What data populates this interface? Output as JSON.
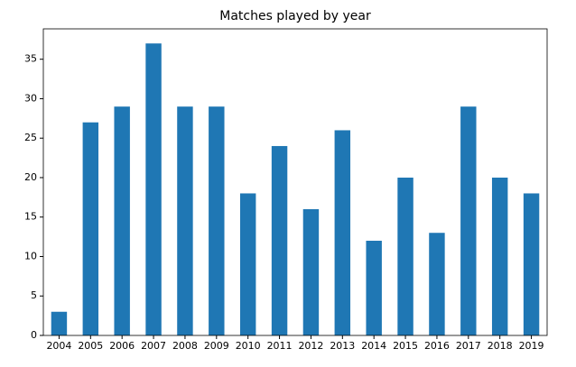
{
  "chart_data": {
    "type": "bar",
    "title": "Matches played by year",
    "categories": [
      "2004",
      "2005",
      "2006",
      "2007",
      "2008",
      "2009",
      "2010",
      "2011",
      "2012",
      "2013",
      "2014",
      "2015",
      "2016",
      "2017",
      "2018",
      "2019"
    ],
    "values": [
      3,
      27,
      29,
      37,
      29,
      29,
      18,
      24,
      16,
      26,
      12,
      20,
      13,
      29,
      20,
      18
    ],
    "color": "#1f77b4",
    "ylim": [
      0,
      38.85
    ],
    "yticks": [
      0,
      5,
      10,
      15,
      20,
      25,
      30,
      35
    ],
    "grid": false
  }
}
